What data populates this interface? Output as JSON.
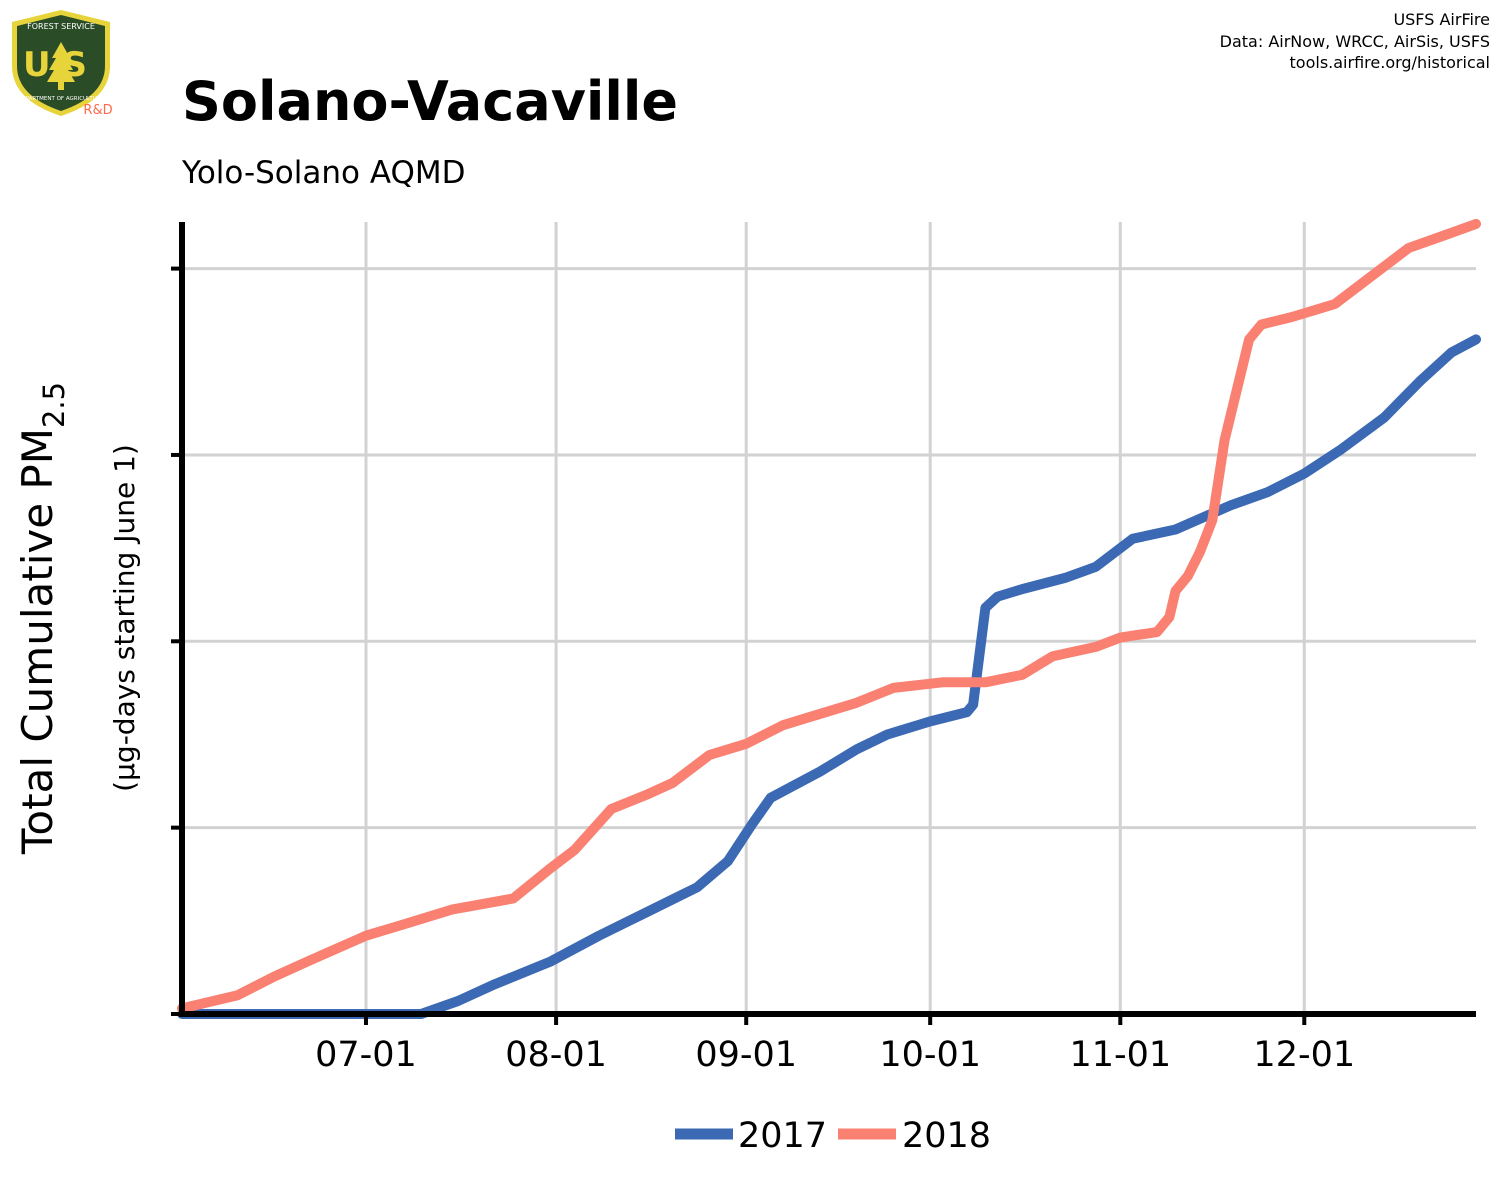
{
  "header": {
    "title": "Solano-Vacaville",
    "subtitle": "Yolo-Solano AQMD",
    "credits": [
      "USFS AirFire",
      "Data: AirNow, WRCC, AirSis, USFS",
      "tools.airfire.org/historical"
    ]
  },
  "logo": {
    "top_text": "FOREST SERVICE",
    "letters": "US",
    "bottom_text": "DEPARTMENT OF AGRICULTURE",
    "badge": "R&D",
    "colors": {
      "shield": "#2a4d27",
      "rim": "#e7d33a",
      "badge": "#ff6b4a"
    }
  },
  "chart_data": {
    "type": "line",
    "ylabel": "Total Cumulative PM",
    "ylabel_sub": "2.5",
    "ylabel2": "(µg-days starting June 1)",
    "xlim": [
      "2018-06-01",
      "2018-12-29"
    ],
    "ylim": [
      0,
      4.25
    ],
    "x_ticks": [
      "2018-07-01",
      "2018-08-01",
      "2018-09-01",
      "2018-10-01",
      "2018-11-01",
      "2018-12-01"
    ],
    "x_tick_labels": [
      "07-01",
      "08-01",
      "09-01",
      "10-01",
      "11-01",
      "12-01"
    ],
    "y_ticks": [
      0,
      1,
      2,
      3,
      4
    ],
    "grid": true,
    "legend_position": "bottom-center",
    "series": [
      {
        "name": "2017",
        "color": "#3b69b3",
        "points": [
          [
            "2018-06-01",
            0
          ],
          [
            "2018-07-10",
            0
          ],
          [
            "2018-07-16",
            0.07
          ],
          [
            "2018-07-22",
            0.16
          ],
          [
            "2018-07-31",
            0.28
          ],
          [
            "2018-08-08",
            0.42
          ],
          [
            "2018-08-16",
            0.55
          ],
          [
            "2018-08-24",
            0.68
          ],
          [
            "2018-08-29",
            0.82
          ],
          [
            "2018-09-02",
            1.02
          ],
          [
            "2018-09-05",
            1.16
          ],
          [
            "2018-09-13",
            1.3
          ],
          [
            "2018-09-19",
            1.42
          ],
          [
            "2018-09-24",
            1.5
          ],
          [
            "2018-10-01",
            1.57
          ],
          [
            "2018-10-07",
            1.62
          ],
          [
            "2018-10-08",
            1.66
          ],
          [
            "2018-10-10",
            2.18
          ],
          [
            "2018-10-12",
            2.24
          ],
          [
            "2018-10-16",
            2.28
          ],
          [
            "2018-10-23",
            2.34
          ],
          [
            "2018-10-28",
            2.4
          ],
          [
            "2018-11-03",
            2.55
          ],
          [
            "2018-11-10",
            2.6
          ],
          [
            "2018-11-19",
            2.73
          ],
          [
            "2018-11-25",
            2.8
          ],
          [
            "2018-12-01",
            2.9
          ],
          [
            "2018-12-07",
            3.03
          ],
          [
            "2018-12-14",
            3.2
          ],
          [
            "2018-12-20",
            3.4
          ],
          [
            "2018-12-25",
            3.55
          ],
          [
            "2018-12-29",
            3.62
          ]
        ]
      },
      {
        "name": "2018",
        "color": "#fa8072",
        "points": [
          [
            "2018-06-01",
            0.03
          ],
          [
            "2018-06-10",
            0.1
          ],
          [
            "2018-06-16",
            0.2
          ],
          [
            "2018-06-22",
            0.29
          ],
          [
            "2018-07-01",
            0.42
          ],
          [
            "2018-07-07",
            0.48
          ],
          [
            "2018-07-15",
            0.56
          ],
          [
            "2018-07-25",
            0.62
          ],
          [
            "2018-07-31",
            0.78
          ],
          [
            "2018-08-04",
            0.88
          ],
          [
            "2018-08-10",
            1.1
          ],
          [
            "2018-08-16",
            1.18
          ],
          [
            "2018-08-20",
            1.24
          ],
          [
            "2018-08-26",
            1.39
          ],
          [
            "2018-09-01",
            1.45
          ],
          [
            "2018-09-07",
            1.55
          ],
          [
            "2018-09-12",
            1.6
          ],
          [
            "2018-09-19",
            1.67
          ],
          [
            "2018-09-25",
            1.75
          ],
          [
            "2018-10-03",
            1.78
          ],
          [
            "2018-10-10",
            1.78
          ],
          [
            "2018-10-16",
            1.82
          ],
          [
            "2018-10-21",
            1.92
          ],
          [
            "2018-10-28",
            1.97
          ],
          [
            "2018-11-01",
            2.02
          ],
          [
            "2018-11-07",
            2.05
          ],
          [
            "2018-11-09",
            2.13
          ],
          [
            "2018-11-10",
            2.27
          ],
          [
            "2018-11-12",
            2.35
          ],
          [
            "2018-11-14",
            2.48
          ],
          [
            "2018-11-16",
            2.65
          ],
          [
            "2018-11-18",
            3.08
          ],
          [
            "2018-11-22",
            3.62
          ],
          [
            "2018-11-24",
            3.7
          ],
          [
            "2018-11-29",
            3.74
          ],
          [
            "2018-12-06",
            3.81
          ],
          [
            "2018-12-12",
            3.96
          ],
          [
            "2018-12-18",
            4.11
          ],
          [
            "2018-12-24",
            4.18
          ],
          [
            "2018-12-29",
            4.24
          ]
        ]
      }
    ]
  }
}
